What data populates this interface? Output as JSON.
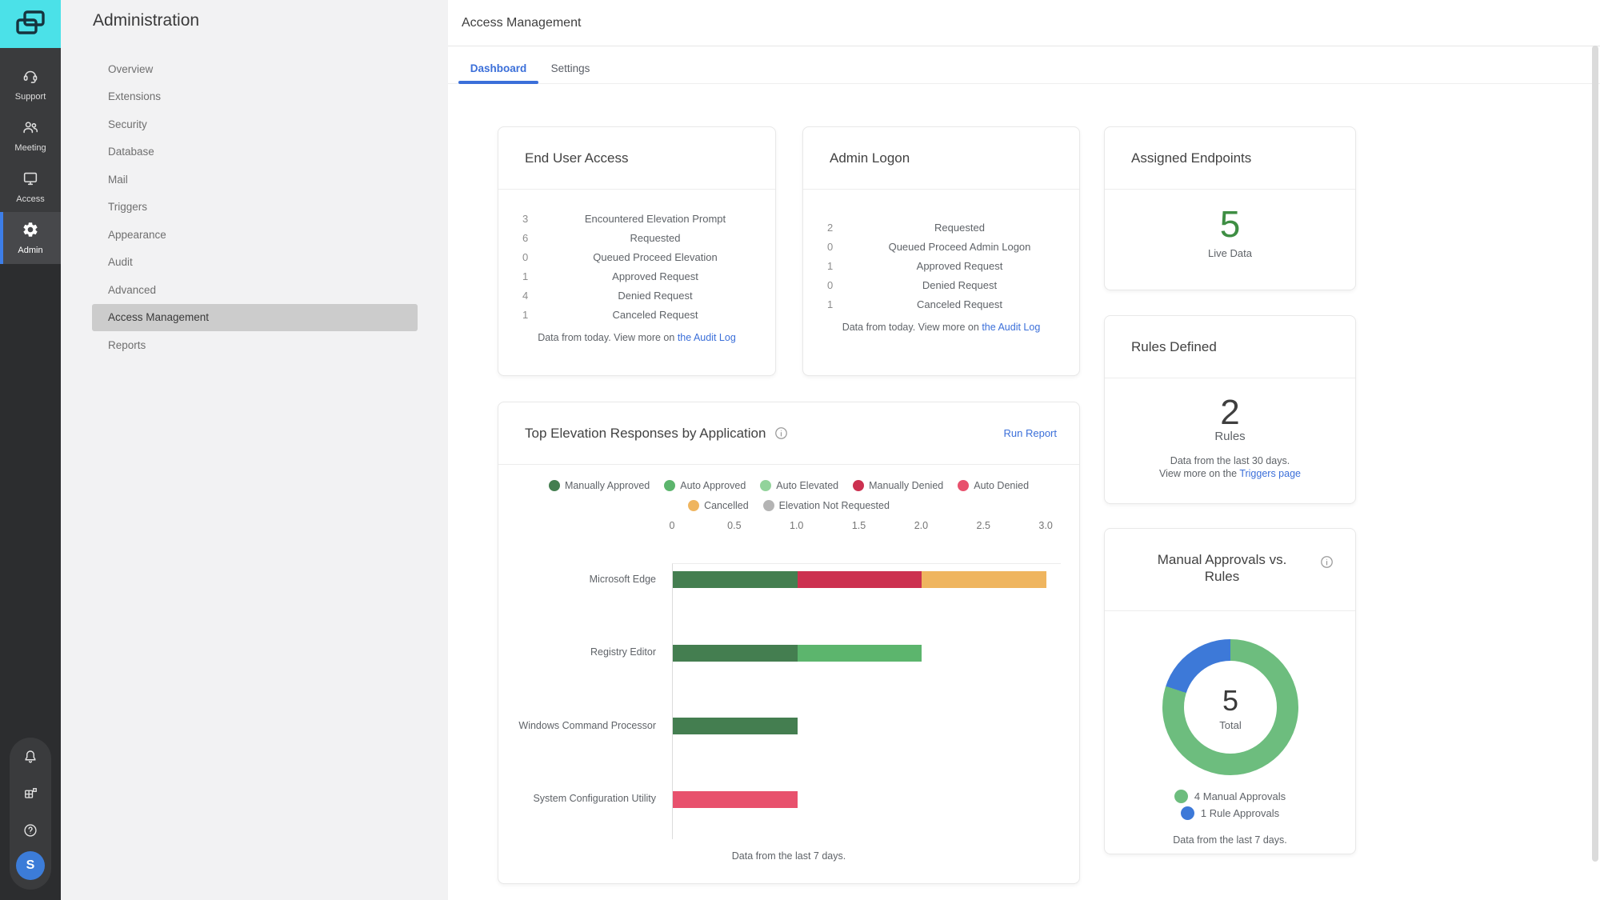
{
  "theme": {
    "accent_blue": "#3B6FD9",
    "logo_bg": "#4BE1E8",
    "rail_active_border": "#3D7EE8",
    "avatar_bg": "#3C7CD8",
    "sidebar_selected_bg": "#CCCCCC"
  },
  "rail": {
    "items": [
      {
        "label": "Support",
        "icon": "headset",
        "active": false
      },
      {
        "label": "Meeting",
        "icon": "people",
        "active": false
      },
      {
        "label": "Access",
        "icon": "monitor",
        "active": false
      },
      {
        "label": "Admin",
        "icon": "gear",
        "active": true
      }
    ],
    "bottom": [
      {
        "name": "notifications",
        "icon": "bell"
      },
      {
        "name": "apps",
        "icon": "grid"
      },
      {
        "name": "help",
        "icon": "question"
      }
    ],
    "avatar": {
      "initial": "S"
    }
  },
  "sidebar": {
    "title": "Administration",
    "items": [
      {
        "label": "Overview",
        "selected": false
      },
      {
        "label": "Extensions",
        "selected": false
      },
      {
        "label": "Security",
        "selected": false
      },
      {
        "label": "Database",
        "selected": false
      },
      {
        "label": "Mail",
        "selected": false
      },
      {
        "label": "Triggers",
        "selected": false
      },
      {
        "label": "Appearance",
        "selected": false
      },
      {
        "label": "Audit",
        "selected": false
      },
      {
        "label": "Advanced",
        "selected": false
      },
      {
        "label": "Access Management",
        "selected": true
      },
      {
        "label": "Reports",
        "selected": false
      }
    ]
  },
  "header": {
    "title": "Access Management",
    "tabs": [
      {
        "label": "Dashboard",
        "active": true
      },
      {
        "label": "Settings",
        "active": false
      }
    ]
  },
  "cards": {
    "end_user_access": {
      "title": "End User Access",
      "rows": [
        {
          "value": "3",
          "label": "Encountered Elevation Prompt"
        },
        {
          "value": "6",
          "label": "Requested"
        },
        {
          "value": "0",
          "label": "Queued Proceed Elevation"
        },
        {
          "value": "1",
          "label": "Approved Request"
        },
        {
          "value": "4",
          "label": "Denied Request"
        },
        {
          "value": "1",
          "label": "Canceled Request"
        }
      ],
      "footer": {
        "text": "Data from today. View more on ",
        "link": "the Audit Log"
      }
    },
    "admin_logon": {
      "title": "Admin Logon",
      "rows": [
        {
          "value": "2",
          "label": "Requested"
        },
        {
          "value": "0",
          "label": "Queued Proceed Admin Logon"
        },
        {
          "value": "1",
          "label": "Approved Request"
        },
        {
          "value": "0",
          "label": "Denied Request"
        },
        {
          "value": "1",
          "label": "Canceled Request"
        }
      ],
      "footer": {
        "text": "Data from today. View more on ",
        "link": "the Audit Log"
      }
    },
    "assigned_endpoints": {
      "title": "Assigned Endpoints",
      "value": "5",
      "caption": "Live Data"
    },
    "rules_defined": {
      "title": "Rules Defined",
      "value": "2",
      "unit": "Rules",
      "footer_line1": "Data from the last 30 days.",
      "footer_line2_text": "View more on the ",
      "footer_line2_link": "Triggers page"
    },
    "top_elevation": {
      "title": "Top Elevation Responses by Application",
      "action": "Run Report",
      "footer": "Data from the last 7 days."
    },
    "manual_vs_rules": {
      "title_line1": "Manual Approvals vs.",
      "title_line2": "Rules",
      "footer": "Data from the last 7 days."
    }
  },
  "chart_data": [
    {
      "type": "bar",
      "orientation": "horizontal",
      "title": "Top Elevation Responses by Application",
      "categories": [
        "Microsoft Edge",
        "Registry Editor",
        "Windows Command Processor",
        "System Configuration Utility"
      ],
      "series": [
        {
          "name": "Manually Approved",
          "color": "#447E50",
          "values": [
            1,
            1,
            1,
            0
          ]
        },
        {
          "name": "Auto Approved",
          "color": "#5CB56D",
          "values": [
            0,
            1,
            0,
            0
          ]
        },
        {
          "name": "Auto Elevated",
          "color": "#92D39B",
          "values": [
            0,
            0,
            0,
            0
          ]
        },
        {
          "name": "Manually Denied",
          "color": "#CC3150",
          "values": [
            1,
            0,
            0,
            0
          ]
        },
        {
          "name": "Auto Denied",
          "color": "#E8516D",
          "values": [
            0,
            0,
            0,
            1
          ]
        },
        {
          "name": "Cancelled",
          "color": "#EFB55F",
          "values": [
            1,
            0,
            0,
            0
          ]
        },
        {
          "name": "Elevation Not Requested",
          "color": "#B4B4B4",
          "values": [
            0,
            0,
            0,
            0
          ]
        }
      ],
      "xlim": [
        0,
        3
      ],
      "xticks": [
        "0",
        "0.5",
        "1.0",
        "1.5",
        "2.0",
        "2.5",
        "3.0"
      ],
      "grid": false,
      "legend_position": "top",
      "note": "Data from the last 7 days."
    },
    {
      "type": "pie",
      "subtype": "donut",
      "title": "Manual Approvals vs. Rules",
      "slices": [
        {
          "label": "Manual Approvals",
          "value": 4,
          "color": "#6DBD7E"
        },
        {
          "label": "Rule Approvals",
          "value": 1,
          "color": "#3D79D8"
        }
      ],
      "center": {
        "value": "5",
        "label": "Total"
      },
      "start_angle": "top",
      "note": "Data from the last 7 days."
    }
  ]
}
